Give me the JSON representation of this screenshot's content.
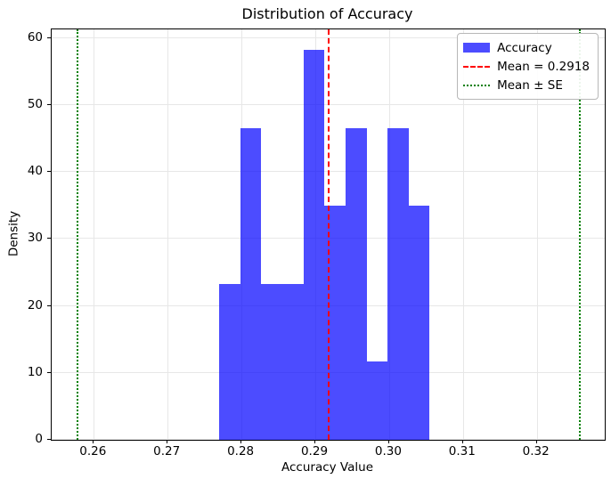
{
  "chart_data": {
    "type": "bar",
    "subtype": "histogram",
    "title": "Distribution of Accuracy",
    "xlabel": "Accuracy Value",
    "ylabel": "Density",
    "xlim": [
      0.2543,
      0.3292
    ],
    "ylim": [
      0,
      61.3
    ],
    "grid": true,
    "xticks": {
      "values": [
        0.26,
        0.27,
        0.28,
        0.29,
        0.3,
        0.31,
        0.32
      ],
      "labels": [
        "0.26",
        "0.27",
        "0.28",
        "0.29",
        "0.30",
        "0.31",
        "0.32"
      ]
    },
    "yticks": {
      "values": [
        0,
        10,
        20,
        30,
        40,
        50,
        60
      ],
      "labels": [
        "0",
        "10",
        "20",
        "30",
        "40",
        "50",
        "60"
      ]
    },
    "series": [
      {
        "name": "Accuracy",
        "kind": "histogram",
        "bin_edges": [
          0.277,
          0.27985,
          0.2827,
          0.28555,
          0.2884,
          0.29125,
          0.2941,
          0.29695,
          0.2998,
          0.30265,
          0.3055
        ],
        "densities": [
          23.3,
          46.6,
          23.3,
          23.3,
          58.3,
          35.0,
          46.6,
          11.7,
          46.6,
          35.0
        ],
        "counts": [
          2,
          4,
          2,
          2,
          5,
          3,
          4,
          1,
          4,
          3
        ],
        "color": "#0000ff",
        "opacity": 0.7
      }
    ],
    "vlines": [
      {
        "name": "mean-line",
        "value": 0.2918,
        "color": "#ff0000",
        "style": "dashed",
        "label": "Mean = 0.2918"
      },
      {
        "name": "mean-minus-se-line",
        "value": 0.2578,
        "color": "#008000",
        "style": "dotted",
        "label": "Mean ± SE"
      },
      {
        "name": "mean-plus-se-line",
        "value": 0.3258,
        "color": "#008000",
        "style": "dotted",
        "label": "Mean ± SE"
      }
    ],
    "legend": {
      "position": "upper right",
      "items": [
        {
          "label": "Accuracy",
          "marker": "patch",
          "color": "#0000ff",
          "opacity": 0.7
        },
        {
          "label": "Mean = 0.2918",
          "marker": "dashed-line",
          "color": "#ff0000"
        },
        {
          "label": "Mean ± SE",
          "marker": "dotted-line",
          "color": "#008000"
        }
      ]
    },
    "colors": {
      "grid": "#e7e7e7",
      "spine": "#000000",
      "text": "#000000",
      "background": "#ffffff"
    }
  }
}
